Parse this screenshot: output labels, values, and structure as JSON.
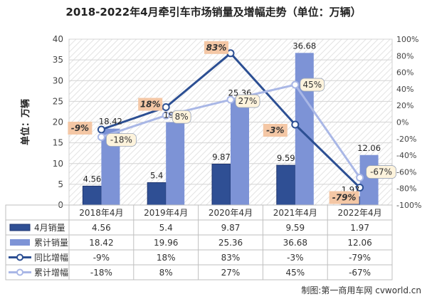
{
  "chart_data": {
    "type": "bar",
    "title": "2018-2022年4月牵引车市场销量及增幅走势（单位：万辆）",
    "ylabel": "单位：万辆",
    "ylim": [
      0,
      40
    ],
    "y_ticks": [
      "0",
      "5",
      "10",
      "15",
      "20",
      "25",
      "30",
      "35",
      "40"
    ],
    "y2lim": [
      -100,
      100
    ],
    "y2_ticks": [
      "-100%",
      "-80%",
      "-60%",
      "-40%",
      "-20%",
      "0%",
      "20%",
      "40%",
      "60%",
      "80%",
      "100%"
    ],
    "categories": [
      "2018年4月",
      "2019年4月",
      "2020年4月",
      "2021年4月",
      "2022年4月"
    ],
    "series": [
      {
        "name": "4月销量",
        "type": "bar",
        "axis": "left",
        "color": "#2f4f94",
        "values": [
          4.56,
          5.4,
          9.87,
          9.59,
          1.97
        ],
        "labels": [
          "4.56",
          "5.4",
          "9.87",
          "9.59",
          "1.97"
        ],
        "table": [
          "4.56",
          "5.4",
          "9.87",
          "9.59",
          "1.97"
        ]
      },
      {
        "name": "累计销量",
        "type": "bar",
        "axis": "left",
        "color": "#7d93d6",
        "values": [
          18.42,
          19.96,
          25.36,
          36.68,
          12.06
        ],
        "labels": [
          "18.42",
          "19.96",
          "25.36",
          "36.68",
          "12.06"
        ],
        "table": [
          "18.42",
          "19.96",
          "25.36",
          "36.68",
          "12.06"
        ]
      },
      {
        "name": "同比增幅",
        "type": "line",
        "axis": "right",
        "color": "#2c4f93",
        "values": [
          -9,
          18,
          83,
          -3,
          -79
        ],
        "labels": [
          "-9%",
          "18%",
          "83%",
          "-3%",
          "-79%"
        ],
        "table": [
          "-9%",
          "18%",
          "83%",
          "-3%",
          "-79%"
        ]
      },
      {
        "name": "累计增幅",
        "type": "line",
        "axis": "right",
        "color": "#a9b7e6",
        "values": [
          -18,
          8,
          27,
          45,
          -67
        ],
        "labels": [
          "-18%",
          "8%",
          "27%",
          "45%",
          "-67%"
        ],
        "table": [
          "-18%",
          "8%",
          "27%",
          "45%",
          "-67%"
        ]
      }
    ]
  },
  "credit": "制图:第一商用车网 cvworld.cn",
  "colors": {
    "yoy_label_bg": "#f4c7a5",
    "cum_label_bg": "#fdf3dc",
    "grid": "#d9d9d9",
    "hatch": "#e3e3e3"
  }
}
